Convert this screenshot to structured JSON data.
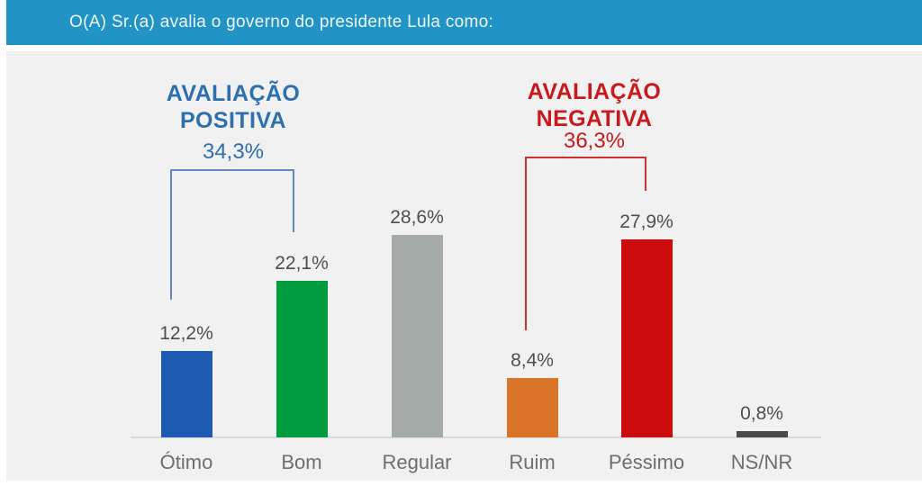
{
  "header": {
    "title": "O(A) Sr.(a) avalia o governo do presidente Lula como:",
    "background": "#2193c4",
    "text_color": "#eef8fd"
  },
  "panel": {
    "background": "#f1f1f2"
  },
  "chart_data": {
    "type": "bar",
    "title": "O(A) Sr.(a) avalia o governo do presidente Lula como:",
    "categories": [
      "Ótimo",
      "Bom",
      "Regular",
      "Ruim",
      "Péssimo",
      "NS/NR"
    ],
    "values": [
      12.2,
      22.1,
      28.6,
      8.4,
      27.9,
      0.8
    ],
    "value_labels": [
      "12,2%",
      "22,1%",
      "28,6%",
      "8,4%",
      "27,9%",
      "0,8%"
    ],
    "bar_colors": [
      "#1d5ab1",
      "#009b3e",
      "#a4aba8",
      "#d97428",
      "#cc0c0c",
      "#474b4c"
    ],
    "value_label_color": "#4f4f4f",
    "category_label_color": "#6e6e6e",
    "axis_color": "#d9d9d9",
    "xlabel": "",
    "ylabel": "",
    "ylim": [
      0,
      30
    ],
    "grid": false,
    "legend": false,
    "annotations": [
      {
        "id": "positive",
        "label": "AVALIAÇÃO\nPOSITIVA",
        "value_label": "34,3%",
        "value": 34.3,
        "text_color": "#2e6fad",
        "bracket_color": "#6787c6",
        "spans": [
          "Ótimo",
          "Bom"
        ]
      },
      {
        "id": "negative",
        "label": "AVALIAÇÃO\nNEGATIVA",
        "value_label": "36,3%",
        "value": 36.3,
        "text_color": "#c9191c",
        "bracket_color": "#cd3234",
        "spans": [
          "Ruim",
          "Péssimo"
        ]
      }
    ]
  }
}
